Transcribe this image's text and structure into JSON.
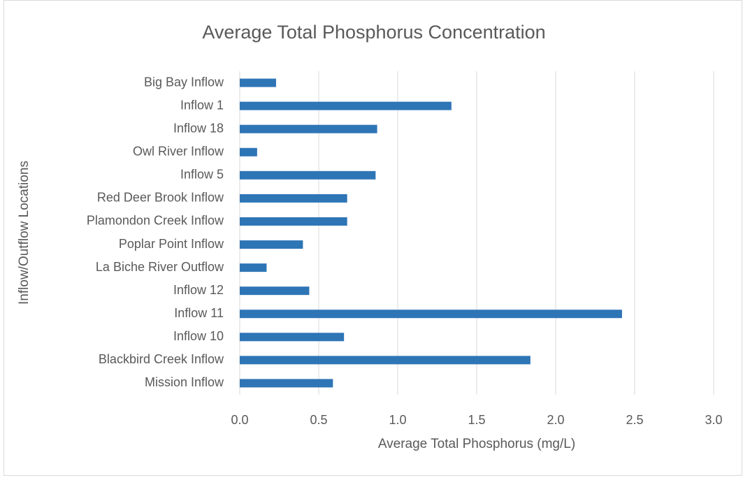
{
  "chart_data": {
    "type": "bar",
    "orientation": "horizontal",
    "title": "Average Total Phosphorus Concentration",
    "x_label": "Average Total Phosphorus (mg/L)",
    "y_label": "Inflow/Outflow Locations",
    "categories": [
      "Big Bay Inflow",
      "Inflow 1",
      "Inflow 18",
      "Owl River Inflow",
      "Inflow 5",
      "Red Deer Brook Inflow",
      "Plamondon Creek Inflow",
      "Poplar Point Inflow",
      "La Biche River Outflow",
      "Inflow 12",
      "Inflow 11",
      "Inflow 10",
      "Blackbird Creek Inflow",
      "Mission Inflow"
    ],
    "values": [
      0.23,
      1.34,
      0.87,
      0.11,
      0.86,
      0.68,
      0.68,
      0.4,
      0.17,
      0.44,
      2.42,
      0.66,
      1.84,
      0.59
    ],
    "color": "#2e75b6",
    "xlim": [
      0,
      3
    ],
    "xticks": [
      {
        "value": 0,
        "label": "0.0"
      },
      0.5,
      {
        "value": 1,
        "label": "1.0"
      },
      1.5,
      {
        "value": 2,
        "label": "2.0"
      },
      2.5,
      {
        "value": 3,
        "label": "3.0"
      }
    ],
    "grid": true
  }
}
